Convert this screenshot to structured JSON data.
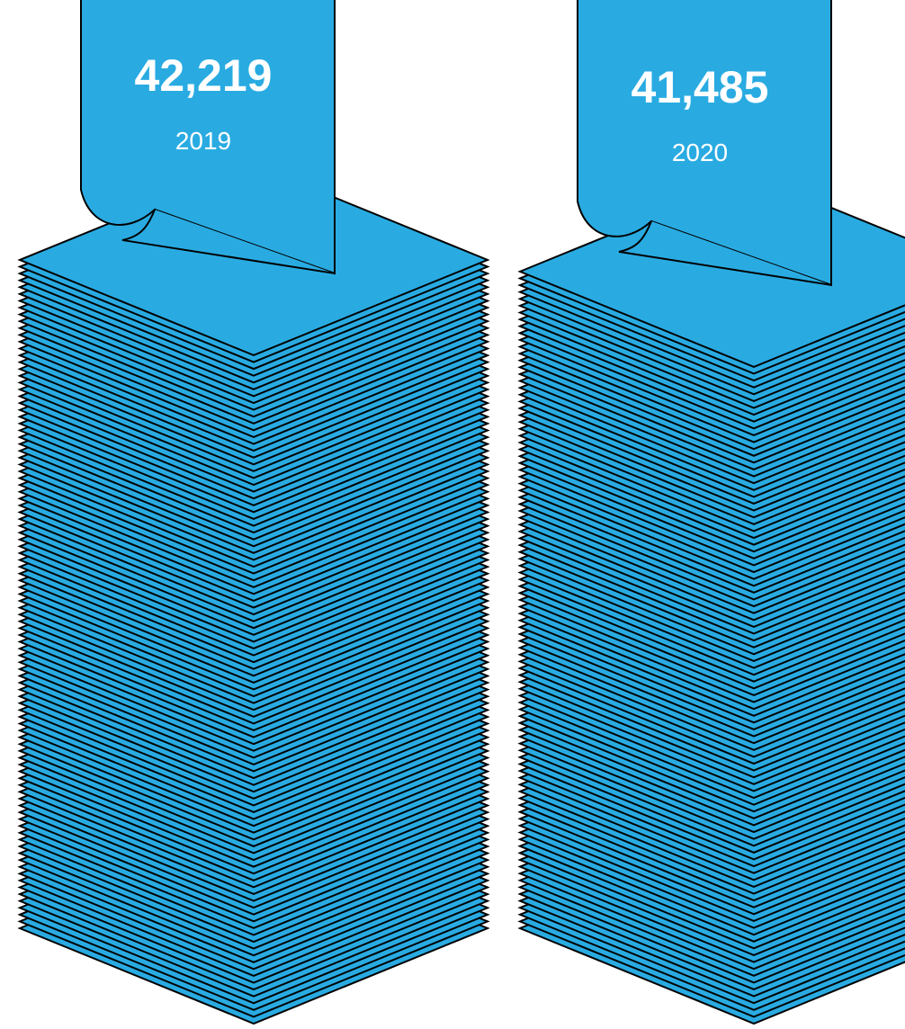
{
  "chart_data": {
    "type": "bar",
    "style": "pictorial paper stacks",
    "categories": [
      "2019",
      "2020"
    ],
    "values": [
      42219,
      41485
    ],
    "value_labels": [
      "42,219",
      "41,485"
    ],
    "title": "",
    "xlabel": "",
    "ylabel": "",
    "grid": false,
    "legend": "none"
  },
  "colors": {
    "paper_fill": "#29abe2",
    "outline": "#000000",
    "text": "#ffffff",
    "background": "#ffffff"
  }
}
